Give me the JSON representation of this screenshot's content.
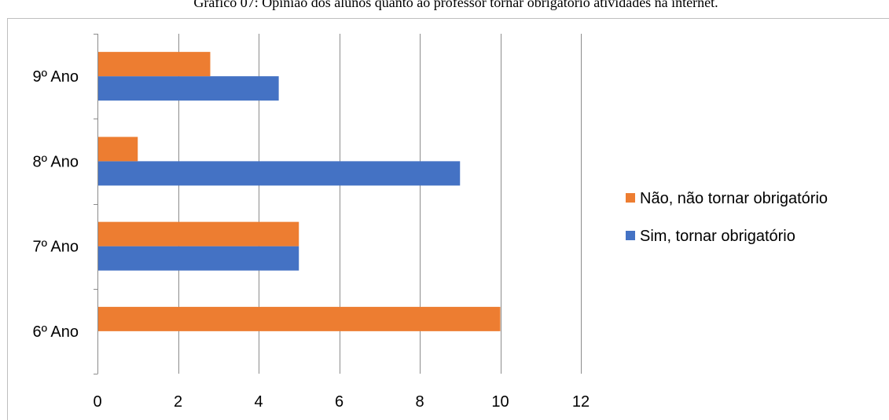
{
  "chart_data": {
    "type": "bar",
    "orientation": "horizontal",
    "title": "Gráfico 07: Opinião dos alunos quanto ao professor tornar obrigatório atividades na internet.",
    "categories": [
      "6º Ano",
      "7º Ano",
      "8º Ano",
      "9º Ano"
    ],
    "series": [
      {
        "name": "Sim, tornar obrigatório",
        "color": "#4472c4",
        "values": [
          0,
          5,
          9,
          4.5
        ]
      },
      {
        "name": "Não, não tornar obrigatório",
        "color": "#ed7d31",
        "values": [
          10,
          5,
          1,
          2.8
        ]
      }
    ],
    "xlim": [
      0,
      12
    ],
    "xticks": [
      0,
      2,
      4,
      6,
      8,
      10,
      12
    ],
    "xlabel": "",
    "ylabel": "",
    "grid": true,
    "legend_position": "right",
    "legend_order": [
      "Não, não tornar obrigatório",
      "Sim, tornar obrigatório"
    ]
  }
}
